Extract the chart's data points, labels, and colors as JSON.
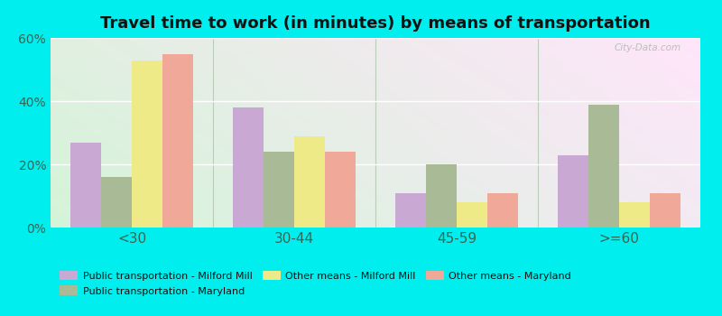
{
  "title": "Travel time to work (in minutes) by means of transportation",
  "categories": [
    "<30",
    "30-44",
    "45-59",
    ">=60"
  ],
  "series_order": [
    "Public transportation - Milford Mill",
    "Public transportation - Maryland",
    "Other means - Milford Mill",
    "Other means - Maryland"
  ],
  "series": {
    "Public transportation - Milford Mill": [
      27,
      38,
      11,
      23
    ],
    "Public transportation - Maryland": [
      16,
      24,
      20,
      39
    ],
    "Other means - Milford Mill": [
      53,
      29,
      8,
      8
    ],
    "Other means - Maryland": [
      55,
      24,
      11,
      11
    ]
  },
  "colors": {
    "Public transportation - Milford Mill": "#c9a8d4",
    "Public transportation - Maryland": "#a8bb96",
    "Other means - Milford Mill": "#eeea88",
    "Other means - Maryland": "#f0a898"
  },
  "ylim": [
    0,
    60
  ],
  "yticks": [
    0,
    20,
    40,
    60
  ],
  "ytick_labels": [
    "0%",
    "20%",
    "40%",
    "60%"
  ],
  "background_color": "#00eeee",
  "watermark": "City-Data.com",
  "bar_width": 0.19,
  "title_fontsize": 13,
  "legend_order": [
    "Public transportation - Milford Mill",
    "Public transportation - Maryland",
    "Other means - Milford Mill",
    "Other means - Maryland"
  ]
}
